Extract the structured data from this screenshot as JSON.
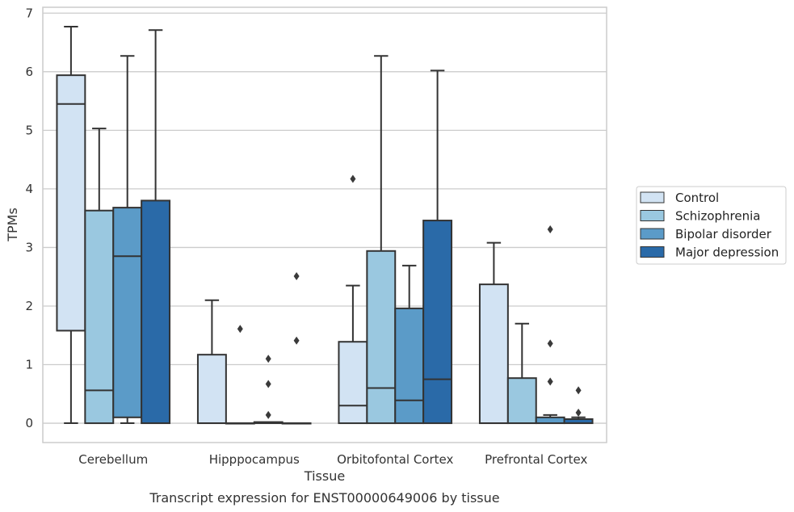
{
  "chart_data": {
    "type": "box",
    "caption": "Transcript expression for ENST00000649006 by tissue",
    "xlabel": "Tissue",
    "ylabel": "TPMs",
    "ylim": [
      -0.33,
      7.1
    ],
    "yticks": [
      0,
      1,
      2,
      3,
      4,
      5,
      6,
      7
    ],
    "grid": true,
    "legend_position": "right",
    "categories": [
      "Cerebellum",
      "Hipppocampus",
      "Orbitofontal Cortex",
      "Prefrontal Cortex"
    ],
    "series": [
      {
        "name": "Control",
        "color": "#d2e3f3",
        "boxes": [
          {
            "min": 0,
            "q1": 1.58,
            "median": 5.45,
            "q3": 5.94,
            "max": 6.77,
            "outliers": []
          },
          {
            "min": 0,
            "q1": 0,
            "median": 0,
            "q3": 1.17,
            "max": 2.1,
            "outliers": []
          },
          {
            "min": 0,
            "q1": 0,
            "median": 0.3,
            "q3": 1.39,
            "max": 2.35,
            "outliers": [
              4.17
            ]
          },
          {
            "min": 0,
            "q1": 0,
            "median": 0,
            "q3": 2.37,
            "max": 3.08,
            "outliers": []
          }
        ]
      },
      {
        "name": "Schizophrenia",
        "color": "#9ac8e0",
        "boxes": [
          {
            "min": 0,
            "q1": 0,
            "median": 0.56,
            "q3": 3.63,
            "max": 5.03,
            "outliers": []
          },
          {
            "min": 0,
            "q1": 0,
            "median": 0,
            "q3": 0,
            "max": 0,
            "outliers": [
              1.61
            ]
          },
          {
            "min": 0,
            "q1": 0,
            "median": 0.6,
            "q3": 2.94,
            "max": 6.27,
            "outliers": []
          },
          {
            "min": 0,
            "q1": 0,
            "median": 0,
            "q3": 0.77,
            "max": 1.7,
            "outliers": []
          }
        ]
      },
      {
        "name": "Bipolar disorder",
        "color": "#5b9bc8",
        "boxes": [
          {
            "min": 0,
            "q1": 0.1,
            "median": 2.85,
            "q3": 3.68,
            "max": 6.27,
            "outliers": []
          },
          {
            "min": 0,
            "q1": 0,
            "median": 0,
            "q3": 0.02,
            "max": 0.02,
            "outliers": [
              1.1,
              0.67,
              0.14
            ]
          },
          {
            "min": 0,
            "q1": 0,
            "median": 0.39,
            "q3": 1.96,
            "max": 2.69,
            "outliers": []
          },
          {
            "min": 0,
            "q1": 0,
            "median": 0,
            "q3": 0.1,
            "max": 0.14,
            "outliers": [
              3.31,
              1.36,
              0.71
            ]
          }
        ]
      },
      {
        "name": "Major depression",
        "color": "#2a6aa8",
        "boxes": [
          {
            "min": 0,
            "q1": 0,
            "median": 0,
            "q3": 3.8,
            "max": 6.71,
            "outliers": []
          },
          {
            "min": 0,
            "q1": 0,
            "median": 0,
            "q3": 0,
            "max": 0,
            "outliers": [
              2.51,
              1.41
            ]
          },
          {
            "min": 0,
            "q1": 0,
            "median": 0.75,
            "q3": 3.46,
            "max": 6.02,
            "outliers": []
          },
          {
            "min": 0,
            "q1": 0,
            "median": 0,
            "q3": 0.07,
            "max": 0.1,
            "outliers": [
              0.56,
              0.18
            ]
          }
        ]
      }
    ]
  }
}
